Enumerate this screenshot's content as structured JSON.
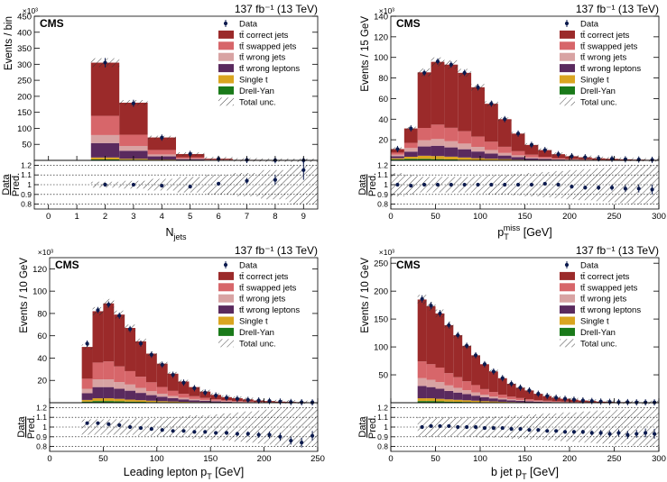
{
  "colors": {
    "correct": "#9b2a2a",
    "swapped": "#d7666a",
    "wrong_jets": "#d8a3a3",
    "wrong_leptons": "#5a2a5e",
    "single_t": "#daa520",
    "drell_yan": "#1a7a1a",
    "data": "#0b1a4e"
  },
  "legend": {
    "entries": [
      {
        "key": "data",
        "label": "Data"
      },
      {
        "key": "correct",
        "label": "tt̄ correct jets"
      },
      {
        "key": "swapped",
        "label": "tt̄ swapped jets"
      },
      {
        "key": "wrong_jets",
        "label": "tt̄ wrong jets"
      },
      {
        "key": "wrong_leptons",
        "label": "tt̄ wrong leptons"
      },
      {
        "key": "single_t",
        "label": "Single t"
      },
      {
        "key": "drell_yan",
        "label": "Drell-Yan"
      },
      {
        "key": "unc",
        "label": "Total unc."
      }
    ]
  },
  "cms_label": "CMS",
  "lumi_label": "137 fb⁻¹ (13 TeV)",
  "exponent_label": "×10³",
  "ratio_ylabel": [
    "Data",
    "Pred."
  ],
  "chart_data": [
    {
      "type": "bar",
      "id": "njets",
      "xlabel": "N_jets",
      "ylabel": "Events / bin",
      "xlim": [
        -0.5,
        9.5
      ],
      "ylim": [
        0,
        450
      ],
      "xticks": [
        0,
        1,
        2,
        3,
        4,
        5,
        6,
        7,
        8,
        9
      ],
      "yticks": [
        50,
        100,
        150,
        200,
        250,
        300,
        350,
        400,
        450
      ],
      "bin_edges": [
        1.5,
        2.5,
        3.5,
        4.5,
        5.5,
        6.5,
        7.5,
        8.5,
        9.5
      ],
      "series": [
        {
          "key": "drell_yan",
          "values": [
            3,
            2,
            1,
            0.3,
            0.1,
            0,
            0,
            0
          ]
        },
        {
          "key": "single_t",
          "values": [
            6,
            3,
            1.5,
            0.5,
            0.2,
            0.1,
            0,
            0
          ]
        },
        {
          "key": "wrong_leptons",
          "values": [
            45,
            25,
            10,
            3,
            1,
            0.3,
            0.1,
            0
          ]
        },
        {
          "key": "wrong_jets",
          "values": [
            25,
            15,
            6,
            2,
            0.5,
            0.2,
            0.1,
            0
          ]
        },
        {
          "key": "swapped",
          "values": [
            60,
            35,
            14,
            4,
            1.2,
            0.4,
            0.1,
            0
          ]
        },
        {
          "key": "correct",
          "values": [
            166,
            100,
            39,
            10,
            2.4,
            0.6,
            0.2,
            0.1
          ]
        }
      ],
      "data": [
        305,
        178,
        71,
        20,
        4.5,
        1.3,
        0.4,
        0.15
      ],
      "ratio": [
        1.0,
        1.0,
        0.99,
        0.98,
        1.01,
        1.04,
        1.05,
        1.15
      ],
      "ratio_err": [
        0.005,
        0.005,
        0.01,
        0.01,
        0.02,
        0.03,
        0.05,
        0.1
      ],
      "ratio_unc": [
        0.03,
        0.04,
        0.06,
        0.08,
        0.1,
        0.12,
        0.15,
        0.2
      ]
    },
    {
      "type": "bar",
      "id": "met",
      "xlabel": "p_T^miss [GeV]",
      "ylabel": "Events / 15 GeV",
      "xlim": [
        0,
        300
      ],
      "ylim": [
        0,
        140
      ],
      "xticks": [
        0,
        50,
        100,
        150,
        200,
        250,
        300
      ],
      "yticks": [
        20,
        40,
        60,
        80,
        100,
        120,
        140
      ],
      "bin_edges": [
        0,
        15,
        30,
        45,
        60,
        75,
        90,
        105,
        120,
        135,
        150,
        165,
        180,
        195,
        210,
        225,
        240,
        255,
        270,
        285,
        300
      ],
      "series": [
        {
          "key": "drell_yan",
          "values": [
            1,
            1.5,
            1.5,
            1.2,
            0.9,
            0.6,
            0.4,
            0.3,
            0.2,
            0.1,
            0.1,
            0,
            0,
            0,
            0,
            0,
            0,
            0,
            0,
            0
          ]
        },
        {
          "key": "single_t",
          "values": [
            1,
            2,
            3,
            3,
            2.7,
            2.2,
            1.7,
            1.3,
            1,
            0.6,
            0.4,
            0.3,
            0.2,
            0.1,
            0.1,
            0,
            0,
            0,
            0,
            0
          ]
        },
        {
          "key": "wrong_leptons",
          "values": [
            2,
            5,
            9,
            10,
            9,
            8,
            6.5,
            5,
            3.5,
            2.5,
            1.5,
            1,
            0.6,
            0.4,
            0.3,
            0.2,
            0.1,
            0.1,
            0,
            0
          ]
        },
        {
          "key": "wrong_jets",
          "values": [
            1.5,
            3.5,
            6,
            6.5,
            6,
            5.5,
            4.5,
            3.5,
            2.5,
            1.7,
            1,
            0.7,
            0.4,
            0.3,
            0.2,
            0.1,
            0.1,
            0,
            0,
            0
          ]
        },
        {
          "key": "swapped",
          "values": [
            2,
            5,
            12,
            14,
            13,
            12,
            10,
            8,
            6,
            4,
            2.5,
            1.5,
            1,
            0.6,
            0.4,
            0.3,
            0.2,
            0.1,
            0.1,
            0
          ]
        },
        {
          "key": "correct",
          "values": [
            3.5,
            14,
            54,
            61,
            61.4,
            56.7,
            47.9,
            36.9,
            26.8,
            17.1,
            9.5,
            6.5,
            3.8,
            2.6,
            2,
            1.4,
            1.1,
            0.8,
            0.6,
            0.5
          ]
        }
      ],
      "data": [
        11,
        31,
        85,
        96,
        93,
        85,
        71,
        55,
        40,
        26,
        15,
        10,
        6,
        4,
        3,
        2,
        1.5,
        1,
        0.8,
        0.5
      ],
      "ratio": [
        1.0,
        0.99,
        1.0,
        1.0,
        1.0,
        1.0,
        1.0,
        1.0,
        1.0,
        1.0,
        1.0,
        1.01,
        1.0,
        0.98,
        0.97,
        0.97,
        0.97,
        0.96,
        0.96,
        0.95
      ],
      "ratio_err": [
        0.01,
        0.01,
        0.005,
        0.005,
        0.005,
        0.005,
        0.005,
        0.005,
        0.006,
        0.008,
        0.01,
        0.012,
        0.015,
        0.018,
        0.02,
        0.025,
        0.03,
        0.035,
        0.04,
        0.05
      ],
      "ratio_unc": [
        0.12,
        0.1,
        0.08,
        0.08,
        0.08,
        0.08,
        0.09,
        0.1,
        0.1,
        0.11,
        0.12,
        0.13,
        0.14,
        0.15,
        0.16,
        0.17,
        0.18,
        0.19,
        0.2,
        0.2
      ]
    },
    {
      "type": "bar",
      "id": "lep_pt",
      "xlabel": "Leading lepton p_T [GeV]",
      "ylabel": "Events / 10 GeV",
      "xlim": [
        0,
        250
      ],
      "ylim": [
        0,
        130
      ],
      "xticks": [
        0,
        50,
        100,
        150,
        200,
        250
      ],
      "yticks": [
        20,
        40,
        60,
        80,
        100,
        120
      ],
      "bin_edges": [
        30,
        40,
        50,
        60,
        70,
        80,
        90,
        100,
        110,
        120,
        130,
        140,
        150,
        160,
        170,
        180,
        190,
        200,
        210,
        220,
        230,
        240,
        250
      ],
      "series": [
        {
          "key": "drell_yan",
          "values": [
            1,
            1.5,
            1.5,
            1.3,
            1,
            0.8,
            0.6,
            0.5,
            0.4,
            0.3,
            0.2,
            0.2,
            0.1,
            0.1,
            0.1,
            0,
            0,
            0,
            0,
            0,
            0,
            0
          ]
        },
        {
          "key": "single_t",
          "values": [
            1.5,
            2.5,
            2.5,
            2.2,
            1.8,
            1.5,
            1.2,
            0.9,
            0.7,
            0.5,
            0.4,
            0.3,
            0.2,
            0.2,
            0.1,
            0.1,
            0.1,
            0,
            0,
            0,
            0,
            0
          ]
        },
        {
          "key": "wrong_leptons",
          "values": [
            6,
            10,
            10,
            9,
            8,
            6.5,
            5,
            4,
            3,
            2.2,
            1.6,
            1.2,
            0.9,
            0.6,
            0.4,
            0.3,
            0.2,
            0.2,
            0.1,
            0.1,
            0.1,
            0
          ]
        },
        {
          "key": "wrong_jets",
          "values": [
            4,
            7,
            7,
            6,
            5.5,
            4.5,
            3.5,
            2.7,
            2,
            1.5,
            1.1,
            0.8,
            0.6,
            0.4,
            0.3,
            0.2,
            0.2,
            0.1,
            0.1,
            0.1,
            0,
            0
          ]
        },
        {
          "key": "swapped",
          "values": [
            9,
            15,
            16,
            14,
            12,
            10,
            8,
            6,
            4.5,
            3.5,
            2.5,
            1.8,
            1.3,
            0.9,
            0.6,
            0.5,
            0.3,
            0.2,
            0.2,
            0.1,
            0.1,
            0.1
          ]
        },
        {
          "key": "correct",
          "values": [
            28.5,
            46,
            52,
            46.5,
            38.7,
            31.7,
            25.7,
            20.9,
            15.4,
            11,
            8.2,
            5.7,
            3.9,
            2.8,
            2.5,
            1.9,
            1.2,
            1,
            0.6,
            0.4,
            0.3,
            0.2
          ]
        }
      ],
      "data": [
        53,
        83,
        88,
        78,
        66,
        53,
        43,
        34,
        25,
        18,
        13,
        9,
        6.5,
        4.5,
        3.5,
        2.5,
        2,
        1.5,
        1,
        0.6,
        0.4,
        0.3
      ],
      "ratio": [
        1.04,
        1.04,
        1.03,
        1.02,
        1.0,
        0.99,
        0.98,
        0.97,
        0.96,
        0.96,
        0.95,
        0.95,
        0.94,
        0.94,
        0.93,
        0.93,
        0.92,
        0.92,
        0.9,
        0.86,
        0.84,
        0.91
      ],
      "ratio_err": [
        0.005,
        0.004,
        0.004,
        0.004,
        0.005,
        0.005,
        0.006,
        0.007,
        0.008,
        0.01,
        0.012,
        0.014,
        0.016,
        0.02,
        0.022,
        0.025,
        0.03,
        0.035,
        0.04,
        0.04,
        0.05,
        0.05
      ],
      "ratio_unc": [
        0.08,
        0.08,
        0.08,
        0.08,
        0.08,
        0.09,
        0.09,
        0.1,
        0.1,
        0.11,
        0.12,
        0.12,
        0.13,
        0.14,
        0.15,
        0.16,
        0.17,
        0.18,
        0.19,
        0.2,
        0.2,
        0.2
      ]
    },
    {
      "type": "bar",
      "id": "bjet_pt",
      "xlabel": "b jet p_T [GeV]",
      "ylabel": "Events / 10 GeV",
      "xlim": [
        0,
        300
      ],
      "ylim": [
        0,
        260
      ],
      "xticks": [
        0,
        50,
        100,
        150,
        200,
        250,
        300
      ],
      "yticks": [
        50,
        100,
        150,
        200,
        250
      ],
      "bin_edges": [
        30,
        40,
        50,
        60,
        70,
        80,
        90,
        100,
        110,
        120,
        130,
        140,
        150,
        160,
        170,
        180,
        190,
        200,
        210,
        220,
        230,
        240,
        250,
        260,
        270,
        280,
        290,
        300
      ],
      "series": [
        {
          "key": "drell_yan",
          "values": [
            3,
            3,
            2.5,
            2,
            1.7,
            1.4,
            1.1,
            0.9,
            0.7,
            0.5,
            0.4,
            0.3,
            0.2,
            0.2,
            0.1,
            0.1,
            0.1,
            0,
            0,
            0,
            0,
            0,
            0,
            0,
            0,
            0,
            0
          ]
        },
        {
          "key": "single_t",
          "values": [
            5,
            5,
            4.5,
            4,
            3.5,
            3,
            2.5,
            2,
            1.6,
            1.2,
            0.9,
            0.7,
            0.5,
            0.4,
            0.3,
            0.2,
            0.2,
            0.1,
            0.1,
            0.1,
            0,
            0,
            0,
            0,
            0,
            0,
            0
          ]
        },
        {
          "key": "wrong_leptons",
          "values": [
            22,
            20,
            18,
            15,
            13,
            11,
            9,
            7,
            5.5,
            4,
            3,
            2.3,
            1.7,
            1.3,
            1,
            0.8,
            0.6,
            0.4,
            0.3,
            0.2,
            0.2,
            0.1,
            0.1,
            0.1,
            0,
            0,
            0
          ]
        },
        {
          "key": "wrong_jets",
          "values": [
            14,
            13,
            12,
            10,
            8.5,
            7,
            6,
            4.5,
            3.5,
            2.7,
            2,
            1.5,
            1.1,
            0.8,
            0.6,
            0.5,
            0.4,
            0.3,
            0.2,
            0.1,
            0.1,
            0.1,
            0.1,
            0,
            0,
            0,
            0
          ]
        },
        {
          "key": "swapped",
          "values": [
            30,
            28,
            26,
            22,
            19,
            16,
            13,
            10,
            8,
            6,
            4.5,
            3.5,
            2.6,
            1.9,
            1.5,
            1.1,
            0.8,
            0.6,
            0.4,
            0.3,
            0.2,
            0.2,
            0.1,
            0.1,
            0.1,
            0.1,
            0
          ]
        },
        {
          "key": "correct",
          "values": [
            111,
            104,
            97,
            86,
            75.3,
            63.6,
            53.4,
            44.6,
            36.7,
            29.6,
            23.2,
            18.7,
            15.9,
            11.4,
            8.5,
            6.3,
            5,
            4.1,
            3,
            2.3,
            1.5,
            1.1,
            0.7,
            0.8,
            0.4,
            0.4,
            0.5
          ]
        }
      ],
      "data": [
        186,
        174,
        160,
        139,
        121,
        102,
        85,
        69,
        56,
        44,
        34,
        27,
        22,
        16,
        12,
        9,
        7,
        5.5,
        4,
        3,
        2,
        1.5,
        1,
        1,
        0.6,
        0.6,
        0.6
      ],
      "ratio": [
        1.0,
        1.01,
        1.01,
        1.01,
        1.0,
        1.0,
        1.0,
        0.99,
        0.99,
        0.99,
        0.98,
        0.98,
        0.97,
        0.97,
        0.96,
        0.96,
        0.95,
        0.95,
        0.95,
        0.94,
        0.94,
        0.93,
        0.94,
        0.92,
        0.93,
        0.94,
        0.93
      ],
      "ratio_err": [
        0.003,
        0.003,
        0.003,
        0.003,
        0.004,
        0.004,
        0.005,
        0.005,
        0.006,
        0.007,
        0.008,
        0.009,
        0.01,
        0.012,
        0.014,
        0.016,
        0.018,
        0.02,
        0.022,
        0.025,
        0.03,
        0.03,
        0.035,
        0.04,
        0.04,
        0.045,
        0.05
      ],
      "ratio_unc": [
        0.1,
        0.1,
        0.1,
        0.1,
        0.1,
        0.1,
        0.1,
        0.11,
        0.11,
        0.11,
        0.12,
        0.12,
        0.13,
        0.13,
        0.14,
        0.14,
        0.15,
        0.15,
        0.16,
        0.16,
        0.17,
        0.17,
        0.18,
        0.18,
        0.19,
        0.19,
        0.2
      ]
    }
  ]
}
